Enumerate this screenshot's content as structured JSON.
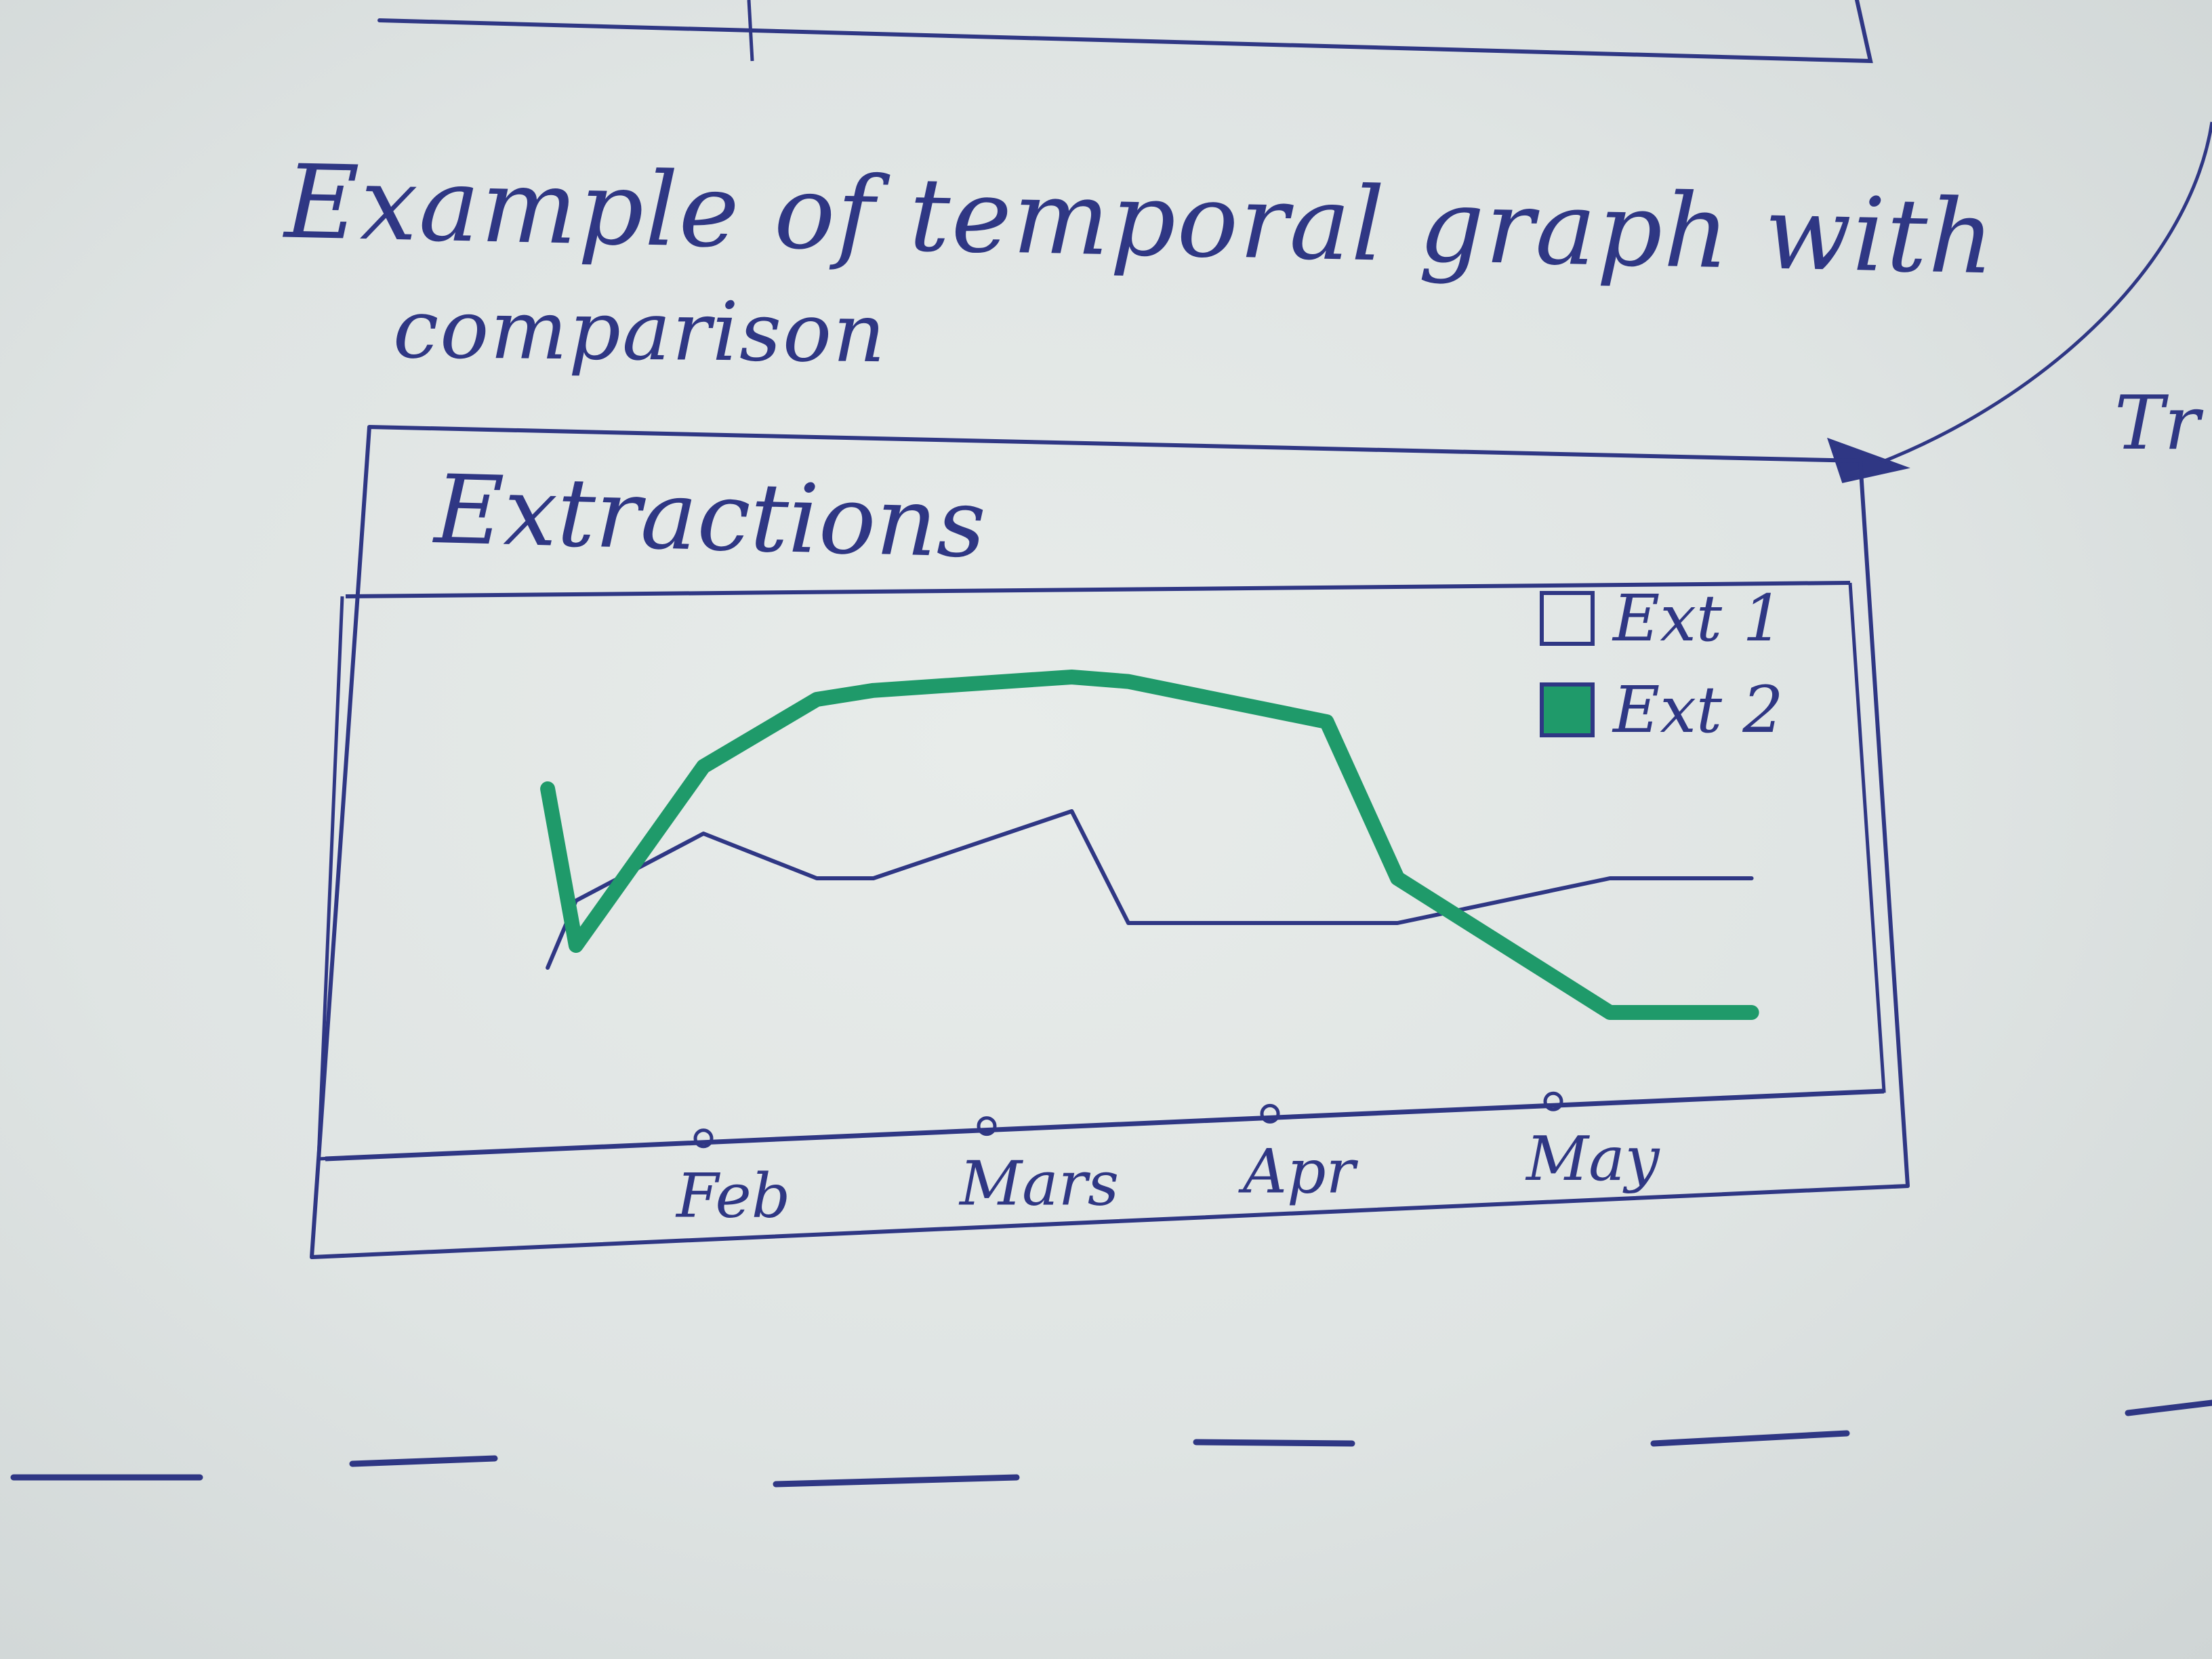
{
  "sketch": {
    "heading_line1": "Example of temporal graph with",
    "heading_line2": "comparison",
    "side_marks": [
      "Tr"
    ]
  },
  "widget": {
    "title": "Extractions"
  },
  "colors": {
    "ink": "#2f3784",
    "ext2": "#1f9a6a",
    "paper": "#e3e8e7"
  },
  "chart_data": {
    "type": "line",
    "title": "Extractions",
    "categories": [
      "Feb",
      "Mars",
      "Apr",
      "May"
    ],
    "x": [
      0.45,
      0.55,
      1.0,
      1.4,
      1.6,
      2.3,
      2.5,
      3.2,
      3.45,
      4.2,
      4.7
    ],
    "series": [
      {
        "name": "Ext 1",
        "color": "#2f3784",
        "values": [
          20,
          35,
          50,
          40,
          40,
          55,
          30,
          30,
          30,
          40,
          40
        ]
      },
      {
        "name": "Ext 2",
        "color": "#1f9a6a",
        "values": [
          60,
          25,
          65,
          80,
          82,
          85,
          84,
          75,
          40,
          10,
          10
        ]
      }
    ],
    "legend": [
      "Ext 1",
      "Ext 2"
    ],
    "legend_position": "top-right",
    "ylim": [
      0,
      100
    ],
    "grid": false
  }
}
